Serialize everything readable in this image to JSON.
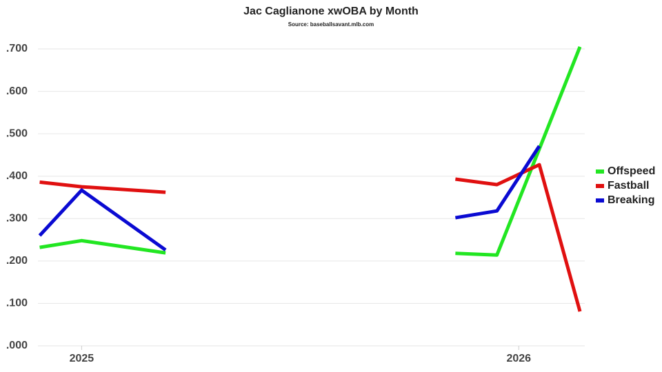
{
  "chart_data": {
    "type": "line",
    "title": "Jac Caglianone xwOBA by Month",
    "subtitle": "Source: baseballsavant.mlb.com",
    "x": [
      2024.904,
      2025.0,
      2025.192,
      null,
      2025.855,
      2025.95,
      2026.047,
      2026.14
    ],
    "xlim": [
      2024.9,
      2026.151
    ],
    "xticks": [
      2025,
      2026
    ],
    "ylim": [
      0,
      0.7
    ],
    "yticks": [
      {
        "value": 0,
        "label": ".000"
      },
      {
        "value": 0.1,
        "label": ".100"
      },
      {
        "value": 0.2,
        "label": ".200"
      },
      {
        "value": 0.3,
        "label": ".300"
      },
      {
        "value": 0.4,
        "label": ".400"
      },
      {
        "value": 0.5,
        "label": ".500"
      },
      {
        "value": 0.6,
        "label": ".600"
      },
      {
        "value": 0.7,
        "label": ".700"
      }
    ],
    "grid": true,
    "legend": "right",
    "series": [
      {
        "name": "Offspeed",
        "color": "#22e622",
        "values": [
          0.232,
          0.248,
          0.219,
          null,
          0.218,
          0.214,
          0.464,
          0.705
        ]
      },
      {
        "name": "Fastball",
        "color": "#e01010",
        "values": [
          0.386,
          0.375,
          0.362,
          null,
          0.393,
          0.38,
          0.427,
          0.081
        ]
      },
      {
        "name": "Breaking",
        "color": "#0a0ad2",
        "values": [
          0.26,
          0.367,
          0.226,
          null,
          0.302,
          0.318,
          0.471,
          null
        ]
      }
    ]
  }
}
